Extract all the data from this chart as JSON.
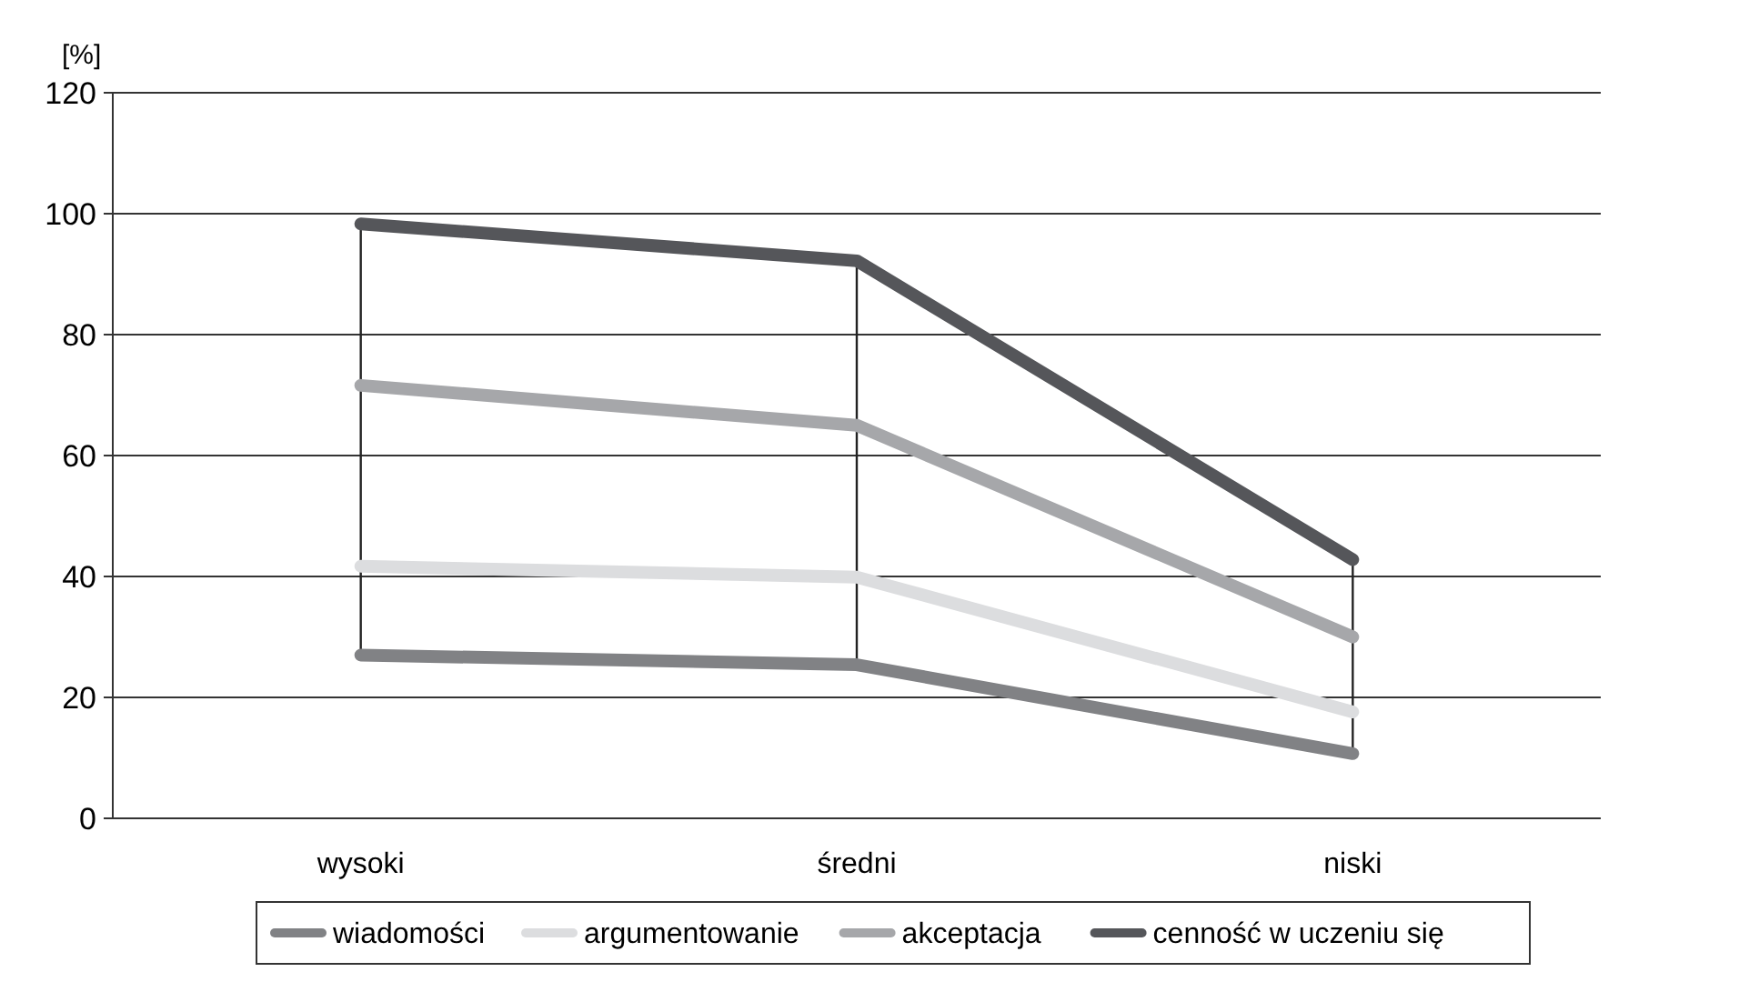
{
  "chart_data": {
    "type": "line",
    "ylabel": "[%]",
    "categories": [
      "wysoki",
      "średni",
      "niski"
    ],
    "series": [
      {
        "name": "wiadomości",
        "color": "#818285",
        "values": [
          27,
          25.4,
          10.7
        ]
      },
      {
        "name": "argumentowanie",
        "color": "#dcdddf",
        "values": [
          41.7,
          39.9,
          17.6
        ]
      },
      {
        "name": "akceptacja",
        "color": "#a6a7aa",
        "values": [
          71.6,
          65,
          30
        ]
      },
      {
        "name": "cenność w uczeniu się",
        "color": "#55565a",
        "values": [
          98.3,
          92.2,
          42.8
        ]
      }
    ],
    "ylim": [
      0,
      120
    ],
    "yticks": [
      0,
      20,
      40,
      60,
      80,
      100,
      120
    ],
    "grid": "y",
    "legend": "bottom",
    "marker": "none",
    "line_style": "solid"
  }
}
